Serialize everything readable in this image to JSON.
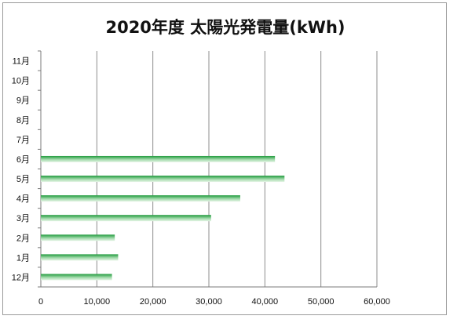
{
  "chart_data": {
    "type": "bar",
    "orientation": "horizontal",
    "title": "2020年度 太陽光発電量(kWh)",
    "categories": [
      "11月",
      "10月",
      "9月",
      "8月",
      "7月",
      "6月",
      "5月",
      "4月",
      "3月",
      "2月",
      "1月",
      "12月"
    ],
    "values": [
      null,
      null,
      null,
      null,
      null,
      41800,
      43500,
      35600,
      30400,
      13200,
      13800,
      12700
    ],
    "xlim": [
      0,
      60000
    ],
    "xticks": [
      0,
      10000,
      20000,
      30000,
      40000,
      50000,
      60000
    ],
    "xtick_labels": [
      "0",
      "10,000",
      "20,000",
      "30,000",
      "40,000",
      "50,000",
      "60,000"
    ],
    "grid": true,
    "bar_color": "#1f9a3c",
    "bar_highlight": "#e6f5e6"
  }
}
